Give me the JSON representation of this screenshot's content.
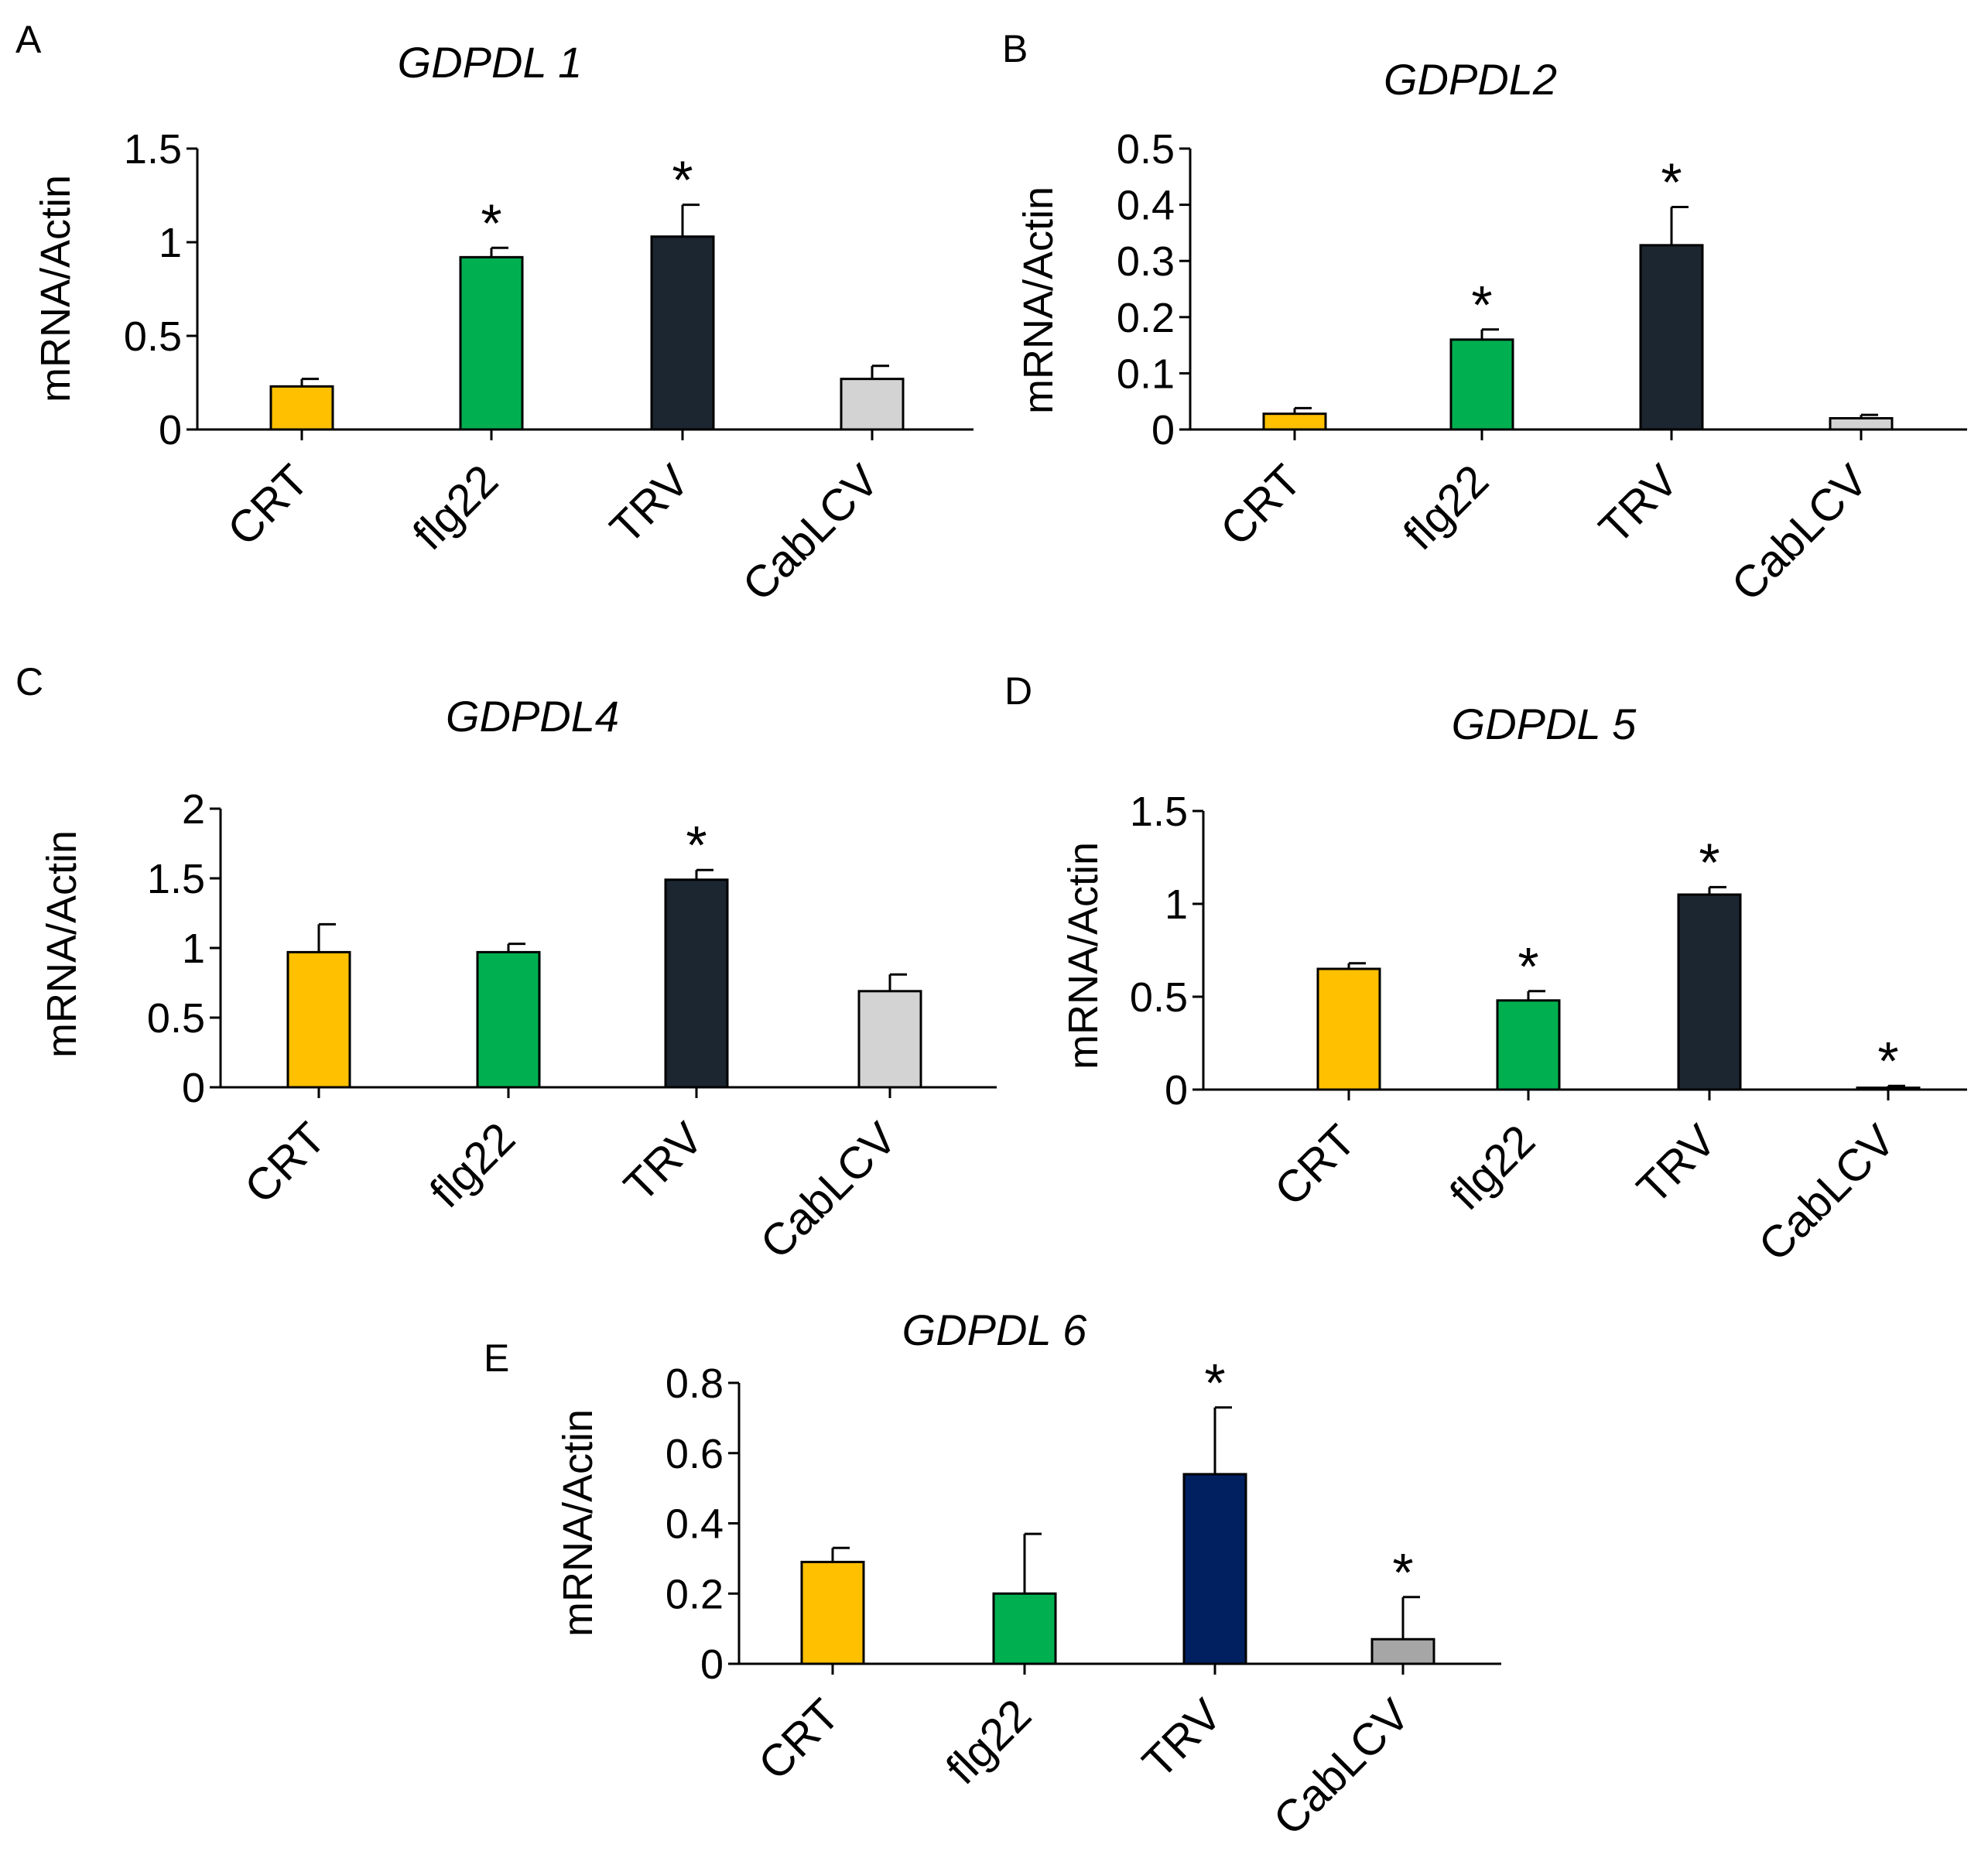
{
  "colors": {
    "CRT": "#FFC000",
    "flg22": "#00B050",
    "TRV": "#1B2631",
    "TRV_E": "#002060",
    "CabLCV": "#D3D3D3",
    "CabLCV_E": "#A6A6A6",
    "bar_edge": "#000000"
  },
  "chart_data": [
    {
      "type": "bar",
      "panel": "A",
      "title": "GDPDL 1",
      "ylabel": "mRNA/Actin",
      "ylim": [
        0,
        1.5
      ],
      "yticks": [
        "0",
        "0.5",
        "1",
        "1.5"
      ],
      "categories": [
        "CRT",
        "flg22",
        "TRV",
        "CabLCV"
      ],
      "values": [
        0.23,
        0.92,
        1.03,
        0.27
      ],
      "errors": [
        0.04,
        0.05,
        0.17,
        0.07
      ],
      "significance": [
        "",
        "*",
        "*",
        ""
      ]
    },
    {
      "type": "bar",
      "panel": "B",
      "title": "GDPDL2",
      "ylabel": "mRNA/Actin",
      "ylim": [
        0,
        0.5
      ],
      "yticks": [
        "0",
        "0.1",
        "0.2",
        "0.3",
        "0.4",
        "0.5"
      ],
      "categories": [
        "CRT",
        "flg22",
        "TRV",
        "CabLCV"
      ],
      "values": [
        0.028,
        0.16,
        0.328,
        0.02
      ],
      "errors": [
        0.01,
        0.018,
        0.068,
        0.006
      ],
      "significance": [
        "",
        "*",
        "*",
        ""
      ]
    },
    {
      "type": "bar",
      "panel": "C",
      "title": "GDPDL4",
      "ylabel": "mRNA/Actin",
      "ylim": [
        0,
        2
      ],
      "yticks": [
        "0",
        "0.5",
        "1",
        "1.5",
        "2"
      ],
      "categories": [
        "CRT",
        "flg22",
        "TRV",
        "CabLCV"
      ],
      "values": [
        0.97,
        0.97,
        1.49,
        0.69
      ],
      "errors": [
        0.2,
        0.06,
        0.07,
        0.12
      ],
      "significance": [
        "",
        "",
        "*",
        ""
      ]
    },
    {
      "type": "bar",
      "panel": "D",
      "title": "GDPDL 5",
      "ylabel": "mRNA/Actin",
      "ylim": [
        0,
        1.5
      ],
      "yticks": [
        "0",
        "0.5",
        "1",
        "1.5"
      ],
      "categories": [
        "CRT",
        "flg22",
        "TRV",
        "CabLCV"
      ],
      "values": [
        0.65,
        0.48,
        1.05,
        0.01
      ],
      "errors": [
        0.03,
        0.05,
        0.04,
        0.01
      ],
      "significance": [
        "",
        "*",
        "*",
        "*"
      ]
    },
    {
      "type": "bar",
      "panel": "E",
      "title": "GDPDL 6",
      "ylabel": "mRNA/Actin",
      "ylim": [
        0,
        0.8
      ],
      "yticks": [
        "0",
        "0.2",
        "0.4",
        "0.6",
        "0.8"
      ],
      "categories": [
        "CRT",
        "flg22",
        "TRV",
        "CabLCV"
      ],
      "values": [
        0.29,
        0.2,
        0.54,
        0.07
      ],
      "errors": [
        0.04,
        0.17,
        0.19,
        0.12
      ],
      "significance": [
        "",
        "",
        "*",
        "*"
      ]
    }
  ]
}
